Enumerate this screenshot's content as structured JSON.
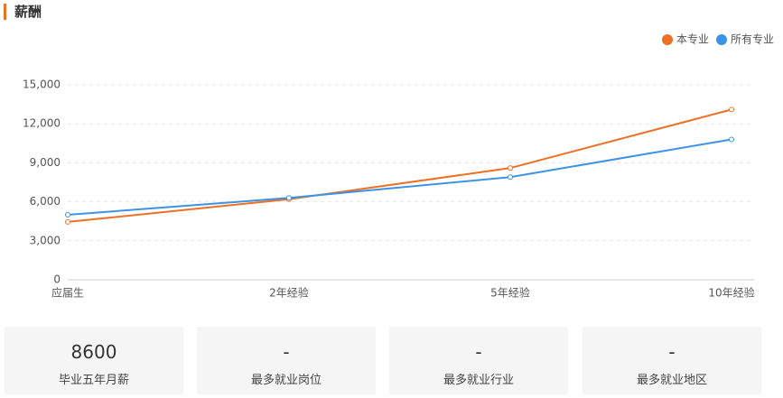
{
  "section_title": "薪酬",
  "chart_data": {
    "type": "line",
    "categories": [
      "应届生",
      "2年经验",
      "5年经验",
      "10年经验"
    ],
    "series": [
      {
        "name": "本专业",
        "color": "#ee7023",
        "values": [
          4450,
          6200,
          8600,
          13100
        ]
      },
      {
        "name": "所有专业",
        "color": "#3c93e6",
        "values": [
          5000,
          6300,
          7900,
          10800
        ]
      }
    ],
    "ylim": [
      0,
      15000
    ],
    "yticks": [
      0,
      {
        "value": 3000,
        "label": "3,000"
      },
      {
        "value": 6000,
        "label": "6,000"
      },
      {
        "value": 9000,
        "label": "9,000"
      },
      {
        "value": 12000,
        "label": "12,000"
      },
      {
        "value": 15000,
        "label": "15,000"
      }
    ],
    "grid": true,
    "legend": "top-right"
  },
  "stats": [
    {
      "value": "8600",
      "label": "毕业五年月薪"
    },
    {
      "value": "-",
      "label": "最多就业岗位"
    },
    {
      "value": "-",
      "label": "最多就业行业"
    },
    {
      "value": "-",
      "label": "最多就业地区"
    }
  ]
}
